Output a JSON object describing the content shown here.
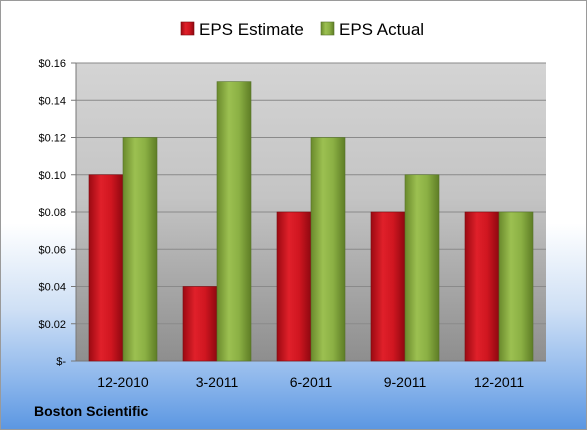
{
  "company": "Boston Scientific",
  "colors": {
    "estimate": "#c0111b",
    "actual": "#85a83e"
  },
  "chart_data": {
    "type": "bar",
    "categories": [
      "12-2010",
      "3-2011",
      "6-2011",
      "9-2011",
      "12-2011"
    ],
    "series": [
      {
        "name": "EPS Estimate",
        "values": [
          0.1,
          0.04,
          0.08,
          0.08,
          0.08
        ]
      },
      {
        "name": "EPS Actual",
        "values": [
          0.12,
          0.15,
          0.12,
          0.1,
          0.08
        ]
      }
    ],
    "ylim": [
      0,
      0.16
    ],
    "yticks": [
      0,
      0.02,
      0.04,
      0.06,
      0.08,
      0.1,
      0.12,
      0.14,
      0.16
    ],
    "ytick_labels": [
      "$-",
      "$0.02",
      "$0.04",
      "$0.06",
      "$0.08",
      "$0.10",
      "$0.12",
      "$0.14",
      "$0.16"
    ],
    "grid": true,
    "legend": "top"
  }
}
